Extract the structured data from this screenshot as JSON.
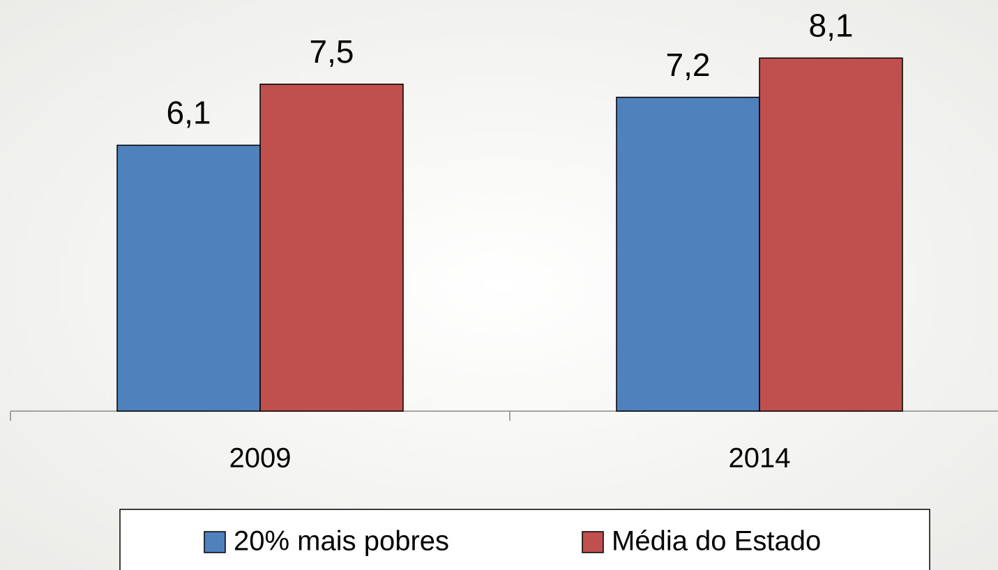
{
  "chart_data": {
    "type": "bar",
    "categories": [
      "2009",
      "2014"
    ],
    "series": [
      {
        "name": "20% mais pobres",
        "color": "#4f81bd",
        "values": [
          6.1,
          7.2
        ],
        "value_labels": [
          "6,1",
          "7,2"
        ]
      },
      {
        "name": "Média do Estado",
        "color": "#c0504d",
        "values": [
          7.5,
          8.1
        ],
        "value_labels": [
          "7,5",
          "8,1"
        ]
      }
    ],
    "ylim": [
      0,
      9
    ]
  }
}
